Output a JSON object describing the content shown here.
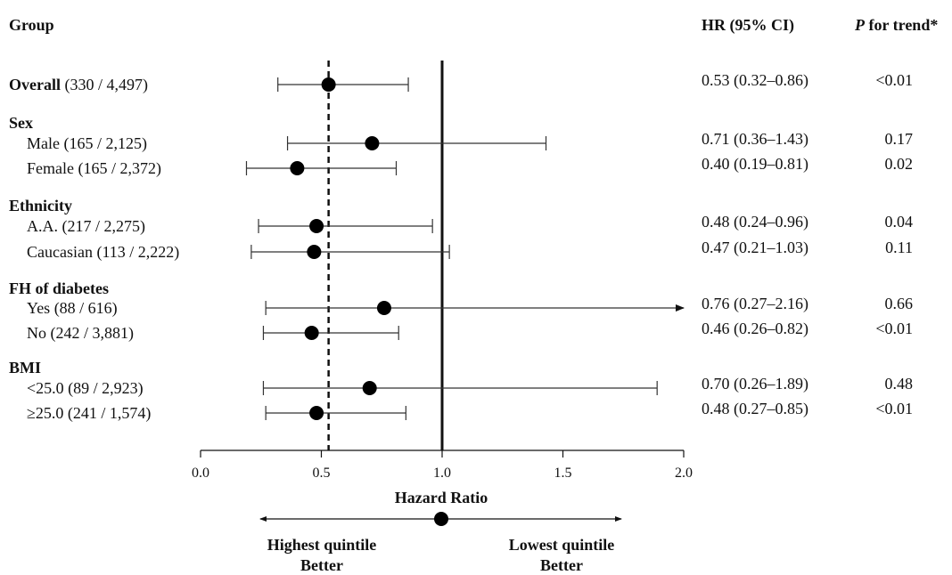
{
  "headers": {
    "group": "Group",
    "hr": "HR (95% CI)",
    "p_italic": "P",
    "p_rest": " for trend*"
  },
  "chart_data": {
    "type": "forest",
    "xlabel": "Hazard Ratio",
    "xlim": [
      0.0,
      2.0
    ],
    "xticks": [
      "0.0",
      "0.5",
      "1.0",
      "1.5",
      "2.0"
    ],
    "reference_line": 1.0,
    "overall_line": 0.53,
    "groups": [
      {
        "name": "Overall",
        "rows": [
          {
            "label": "(330 / 4,497)",
            "hr": 0.53,
            "lo": 0.32,
            "hi": 0.86,
            "hr_text": "0.53 (0.32–0.86)",
            "p": "<0.01"
          }
        ]
      },
      {
        "name": "Sex",
        "rows": [
          {
            "label": "Male (165 / 2,125)",
            "hr": 0.71,
            "lo": 0.36,
            "hi": 1.43,
            "hr_text": "0.71 (0.36–1.43)",
            "p": "0.17"
          },
          {
            "label": "Female (165 / 2,372)",
            "hr": 0.4,
            "lo": 0.19,
            "hi": 0.81,
            "hr_text": "0.40 (0.19–0.81)",
            "p": "0.02"
          }
        ]
      },
      {
        "name": "Ethnicity",
        "rows": [
          {
            "label": "A.A. (217 / 2,275)",
            "hr": 0.48,
            "lo": 0.24,
            "hi": 0.96,
            "hr_text": "0.48 (0.24–0.96)",
            "p": "0.04"
          },
          {
            "label": "Caucasian (113 / 2,222)",
            "hr": 0.47,
            "lo": 0.21,
            "hi": 1.03,
            "hr_text": "0.47 (0.21–1.03)",
            "p": "0.11"
          }
        ]
      },
      {
        "name": "FH of diabetes",
        "rows": [
          {
            "label": "Yes (88 / 616)",
            "hr": 0.76,
            "lo": 0.27,
            "hi": 2.16,
            "hr_text": "0.76 (0.27–2.16)",
            "p": "0.66"
          },
          {
            "label": "No (242 / 3,881)",
            "hr": 0.46,
            "lo": 0.26,
            "hi": 0.82,
            "hr_text": "0.46 (0.26–0.82)",
            "p": "<0.01"
          }
        ]
      },
      {
        "name": "BMI",
        "rows": [
          {
            "label": "<25.0 (89 / 2,923)",
            "hr": 0.7,
            "lo": 0.26,
            "hi": 1.89,
            "hr_text": "0.70 (0.26–1.89)",
            "p": "0.48"
          },
          {
            "label": "≥25.0 (241 / 1,574)",
            "hr": 0.48,
            "lo": 0.27,
            "hi": 0.85,
            "hr_text": "0.48 (0.27–0.85)",
            "p": "<0.01"
          }
        ]
      }
    ],
    "direction_legend": {
      "left": [
        "Highest quintile",
        "Better"
      ],
      "right": [
        "Lowest quintile",
        "Better"
      ]
    }
  }
}
